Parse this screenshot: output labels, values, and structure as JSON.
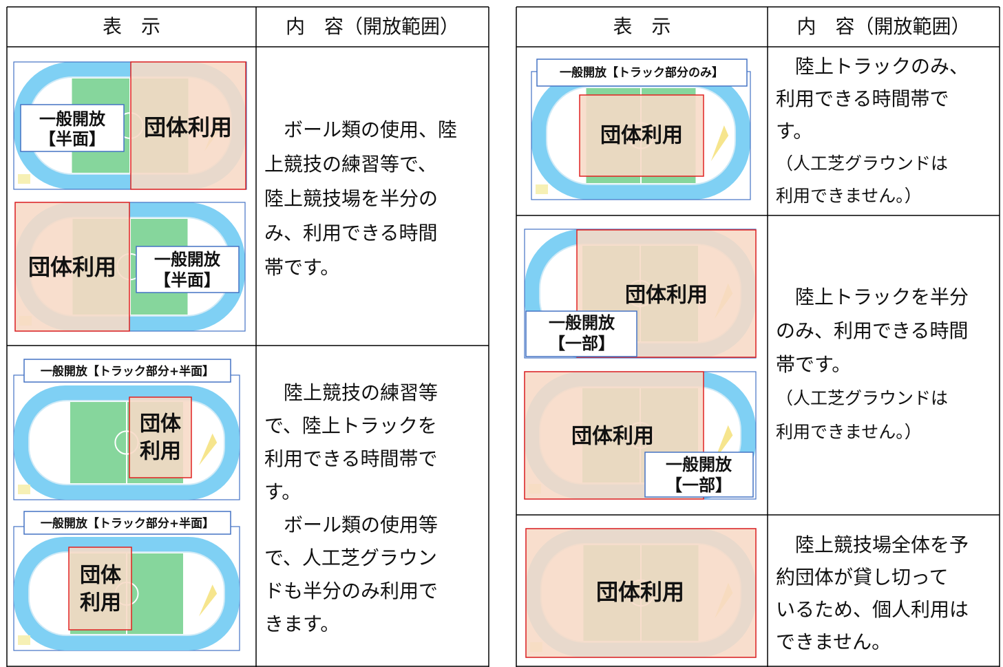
{
  "left_table": {
    "header": [
      "表　示",
      "内　容（開放範囲）"
    ],
    "rows": [
      {
        "diagrams": [
          {
            "open_label": [
              "一般開放",
              "【半面】"
            ],
            "group_label": [
              "団体利用"
            ]
          },
          {
            "open_label": [
              "一般開放",
              "【半面】"
            ],
            "group_label": [
              "団体利用"
            ]
          }
        ],
        "description": [
          "　ボール類の使用、陸",
          "上競技の練習等で、",
          "陸上競技場を半分の",
          "み、利用できる時間",
          "帯です。"
        ]
      },
      {
        "diagrams": [
          {
            "open_label": [
              "一般開放【トラック部分+半面】"
            ],
            "group_label": [
              "団体",
              "利用"
            ]
          },
          {
            "open_label": [
              "一般開放【トラック部分+半面】"
            ],
            "group_label": [
              "団体",
              "利用"
            ]
          }
        ],
        "description": [
          "　陸上競技の練習等",
          "で、陸上トラックを",
          "利用できる時間帯で",
          "す。",
          "　ボール類の使用等",
          "で、人工芝グラウン",
          "ドも半分のみ利用で",
          "きます。"
        ]
      }
    ]
  },
  "right_table": {
    "header": [
      "表　示",
      "内　容（開放範囲）"
    ],
    "rows": [
      {
        "diagrams": [
          {
            "open_label": [
              "一般開放【トラック部分のみ】"
            ],
            "group_label": [
              "団体利用"
            ]
          }
        ],
        "description": [
          "　陸上トラックのみ、",
          "利用できる時間帯で",
          "す。",
          "（人工芝グラウンドは",
          "利用できません。）"
        ]
      },
      {
        "diagrams": [
          {
            "open_label": [
              "一般開放",
              "【一部】"
            ],
            "group_label": [
              "団体利用"
            ]
          },
          {
            "open_label": [
              "一般開放",
              "【一部】"
            ],
            "group_label": [
              "団体利用"
            ]
          }
        ],
        "description": [
          "　陸上トラックを半分",
          "のみ、利用できる時間",
          "帯です。",
          "（人工芝グラウンドは",
          "利用できません。）"
        ]
      },
      {
        "diagrams": [
          {
            "group_label": [
              "団体利用"
            ]
          }
        ],
        "description": [
          "　陸上競技場全体を予",
          "約団体が貸し切って",
          "いるため、個人利用は",
          "できません。"
        ]
      }
    ]
  }
}
